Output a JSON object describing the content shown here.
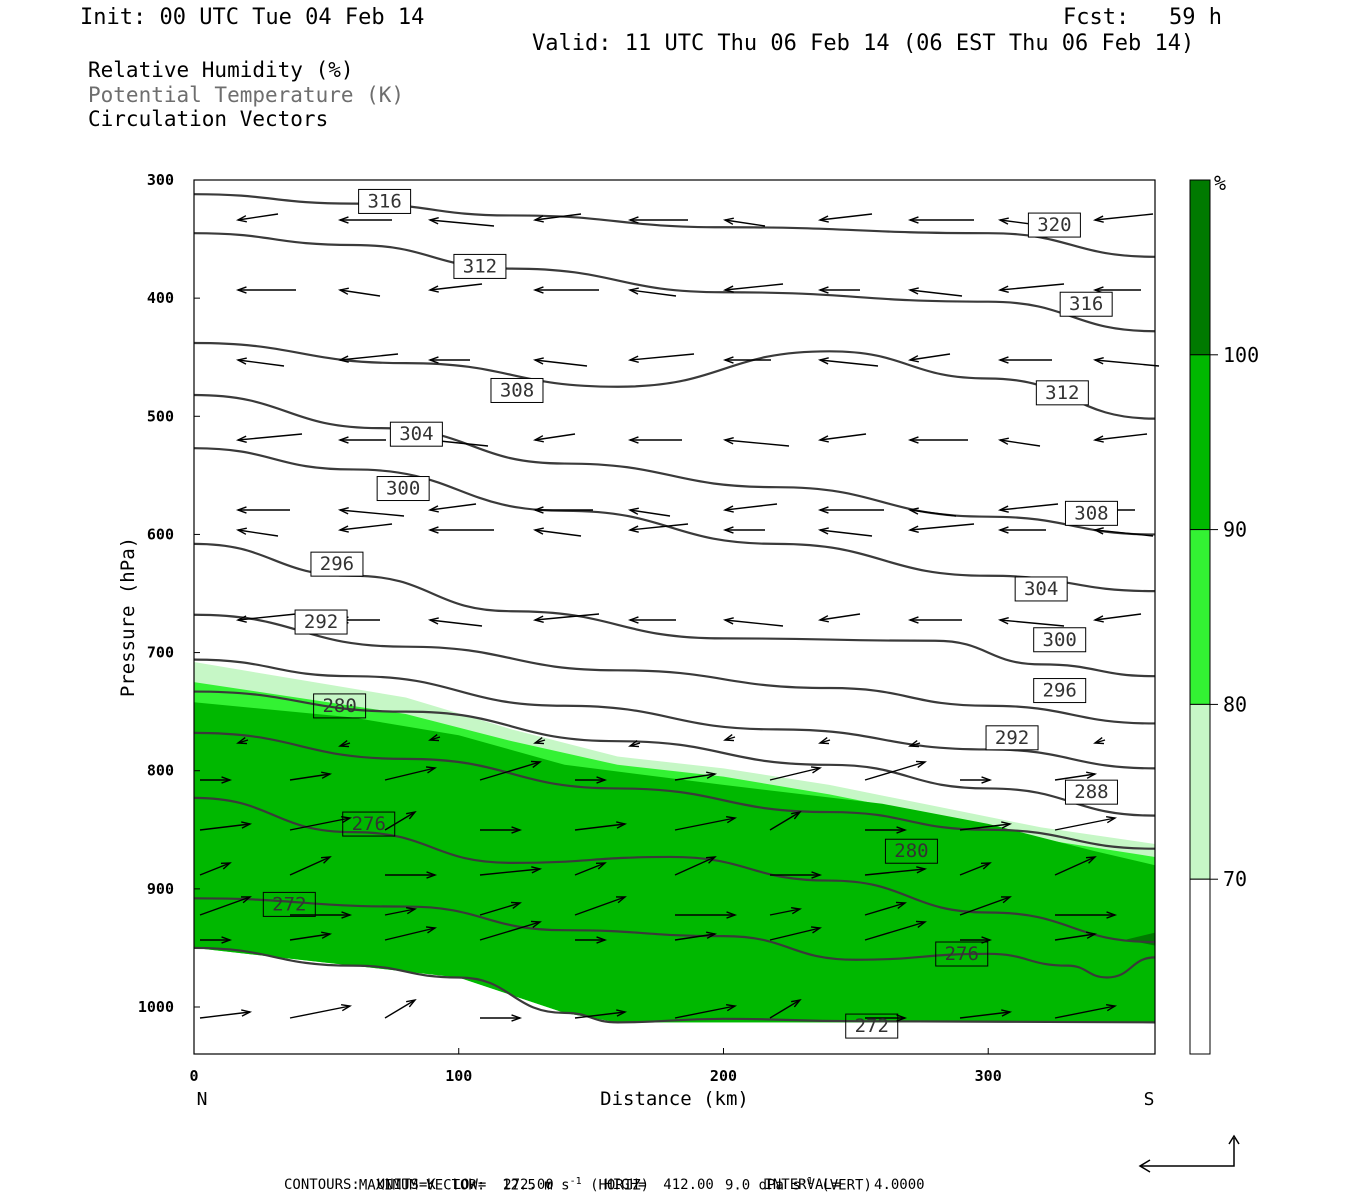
{
  "header": {
    "init": "Init: 00 UTC Tue 04 Feb 14",
    "fcst": "Fcst:   59 h",
    "valid": "Valid: 11 UTC Thu 06 Feb 14 (06 EST Thu 06 Feb 14)"
  },
  "legend": {
    "line1": "Relative Humidity (%)",
    "line2": "Potential Temperature (K)",
    "line3": "Circulation Vectors"
  },
  "footer": {
    "max_vector_label": "MAXIMUM VECTOR:",
    "max_vector_horiz": "12.5 m s",
    "horiz_tag": "(HORIZ)",
    "max_vector_vert": "9.0 dPa s",
    "vert_tag": "(VERT)",
    "superscript": "-1",
    "contours": "CONTOURS:  UNITS=K  LOW=  272.00      HIGH=  412.00      INTERVAL=    4.0000"
  },
  "colors": {
    "rh70": "#c6f7c6",
    "rh80": "#33f233",
    "rh90": "#00b800",
    "rh100": "#007a00",
    "theta_line": "#3a3a3a",
    "legend_gray": "#6e6e6e"
  },
  "chart_data": {
    "type": "cross-section",
    "xlabel": "Distance (km)",
    "ylabel": "Pressure (hPa)",
    "xlim": [
      0,
      363
    ],
    "ylim": [
      1040,
      300
    ],
    "x_ticks": [
      0,
      100,
      200,
      300
    ],
    "y_ticks": [
      300,
      400,
      500,
      600,
      700,
      800,
      900,
      1000
    ],
    "x_end_labels": {
      "left": "N",
      "right": "S"
    },
    "colorbar": {
      "unit": "%",
      "levels": [
        100,
        90,
        80,
        70
      ],
      "bands": [
        {
          "range": "100+",
          "color": "#007a00"
        },
        {
          "range": "90-100",
          "color": "#00b800"
        },
        {
          "range": "80-90",
          "color": "#33f233"
        },
        {
          "range": "70-80",
          "color": "#c6f7c6"
        },
        {
          "range": "<70",
          "color": "#ffffff"
        }
      ]
    },
    "rh_shading": [
      {
        "level": 70,
        "top_pressure": [
          [
            0,
            708
          ],
          [
            80,
            738
          ],
          [
            120,
            765
          ],
          [
            160,
            788
          ],
          [
            200,
            798
          ],
          [
            240,
            812
          ],
          [
            280,
            830
          ],
          [
            320,
            848
          ],
          [
            363,
            862
          ]
        ]
      },
      {
        "level": 80,
        "top_pressure": [
          [
            0,
            725
          ],
          [
            80,
            752
          ],
          [
            120,
            775
          ],
          [
            160,
            795
          ],
          [
            200,
            805
          ],
          [
            240,
            820
          ],
          [
            280,
            838
          ],
          [
            320,
            858
          ],
          [
            363,
            873
          ]
        ]
      },
      {
        "level": 90,
        "top_pressure": [
          [
            0,
            742
          ],
          [
            60,
            755
          ],
          [
            100,
            770
          ],
          [
            140,
            795
          ],
          [
            200,
            812
          ],
          [
            260,
            828
          ],
          [
            300,
            845
          ],
          [
            340,
            868
          ],
          [
            363,
            880
          ]
        ]
      }
    ],
    "theta_series": [
      {
        "value": 320,
        "points": [
          [
            0,
            312
          ],
          [
            60,
            320
          ],
          [
            120,
            330
          ],
          [
            200,
            340
          ],
          [
            300,
            345
          ],
          [
            363,
            365
          ]
        ]
      },
      {
        "value": 316,
        "points": [
          [
            0,
            345
          ],
          [
            60,
            355
          ],
          [
            120,
            375
          ],
          [
            200,
            395
          ],
          [
            300,
            403
          ],
          [
            363,
            428
          ]
        ]
      },
      {
        "value": 312,
        "points": [
          [
            0,
            438
          ],
          [
            80,
            455
          ],
          [
            160,
            475
          ],
          [
            240,
            445
          ],
          [
            300,
            468
          ],
          [
            363,
            502
          ]
        ]
      },
      {
        "value": 308,
        "points": [
          [
            0,
            482
          ],
          [
            70,
            510
          ],
          [
            140,
            540
          ],
          [
            220,
            560
          ],
          [
            300,
            585
          ],
          [
            363,
            600
          ]
        ]
      },
      {
        "value": 304,
        "points": [
          [
            0,
            527
          ],
          [
            60,
            545
          ],
          [
            140,
            580
          ],
          [
            220,
            608
          ],
          [
            300,
            635
          ],
          [
            363,
            648
          ]
        ]
      },
      {
        "value": 300,
        "points": [
          [
            0,
            608
          ],
          [
            60,
            635
          ],
          [
            120,
            665
          ],
          [
            200,
            688
          ],
          [
            280,
            690
          ],
          [
            320,
            710
          ],
          [
            363,
            720
          ]
        ]
      },
      {
        "value": 296,
        "points": [
          [
            0,
            668
          ],
          [
            80,
            695
          ],
          [
            160,
            715
          ],
          [
            240,
            730
          ],
          [
            300,
            745
          ],
          [
            363,
            760
          ]
        ]
      },
      {
        "value": 292,
        "points": [
          [
            0,
            706
          ],
          [
            60,
            720
          ],
          [
            140,
            745
          ],
          [
            220,
            765
          ],
          [
            300,
            782
          ],
          [
            363,
            798
          ]
        ]
      },
      {
        "value": 288,
        "points": [
          [
            0,
            733
          ],
          [
            80,
            750
          ],
          [
            160,
            775
          ],
          [
            240,
            795
          ],
          [
            300,
            815
          ],
          [
            363,
            838
          ]
        ]
      },
      {
        "value": 284,
        "points": [
          [
            0,
            768
          ],
          [
            80,
            790
          ],
          [
            160,
            815
          ],
          [
            240,
            835
          ],
          [
            300,
            850
          ],
          [
            363,
            866
          ]
        ]
      },
      {
        "value": 280,
        "points": [
          [
            0,
            823
          ],
          [
            60,
            852
          ],
          [
            120,
            878
          ],
          [
            180,
            873
          ],
          [
            240,
            893
          ],
          [
            300,
            920
          ],
          [
            363,
            945
          ]
        ]
      },
      {
        "value": 276,
        "points": [
          [
            0,
            908
          ],
          [
            80,
            915
          ],
          [
            140,
            935
          ],
          [
            200,
            940
          ],
          [
            250,
            960
          ],
          [
            300,
            955
          ],
          [
            330,
            965
          ],
          [
            345,
            975
          ],
          [
            363,
            958
          ]
        ]
      },
      {
        "value": 272,
        "points": [
          [
            0,
            950
          ],
          [
            60,
            965
          ],
          [
            100,
            975
          ],
          [
            140,
            1005
          ],
          [
            160,
            1013
          ],
          [
            200,
            1010
          ],
          [
            250,
            1012
          ],
          [
            363,
            1013
          ]
        ]
      }
    ],
    "contour_labels": [
      {
        "text": "316",
        "x": 72,
        "p": 330
      },
      {
        "text": "312",
        "x": 108,
        "p": 385
      },
      {
        "text": "308",
        "x": 122,
        "p": 490
      },
      {
        "text": "304",
        "x": 84,
        "p": 527
      },
      {
        "text": "300",
        "x": 79,
        "p": 573
      },
      {
        "text": "296",
        "x": 54,
        "p": 637
      },
      {
        "text": "292",
        "x": 48,
        "p": 686
      },
      {
        "text": "280",
        "x": 55,
        "p": 757
      },
      {
        "text": "276",
        "x": 66,
        "p": 857
      },
      {
        "text": "272",
        "x": 36,
        "p": 925
      },
      {
        "text": "320",
        "x": 325,
        "p": 350
      },
      {
        "text": "316",
        "x": 337,
        "p": 417
      },
      {
        "text": "312",
        "x": 328,
        "p": 492
      },
      {
        "text": "308",
        "x": 339,
        "p": 594
      },
      {
        "text": "304",
        "x": 320,
        "p": 658
      },
      {
        "text": "300",
        "x": 327,
        "p": 701
      },
      {
        "text": "296",
        "x": 327,
        "p": 744
      },
      {
        "text": "292",
        "x": 309,
        "p": 784
      },
      {
        "text": "288",
        "x": 339,
        "p": 830
      },
      {
        "text": "280",
        "x": 271,
        "p": 880
      },
      {
        "text": "276",
        "x": 290,
        "p": 967
      },
      {
        "text": "272",
        "x": 256,
        "p": 1028
      }
    ],
    "vectors_note": "circulation vectors: upper levels point toward N (left), lower levels point toward S (right)"
  }
}
